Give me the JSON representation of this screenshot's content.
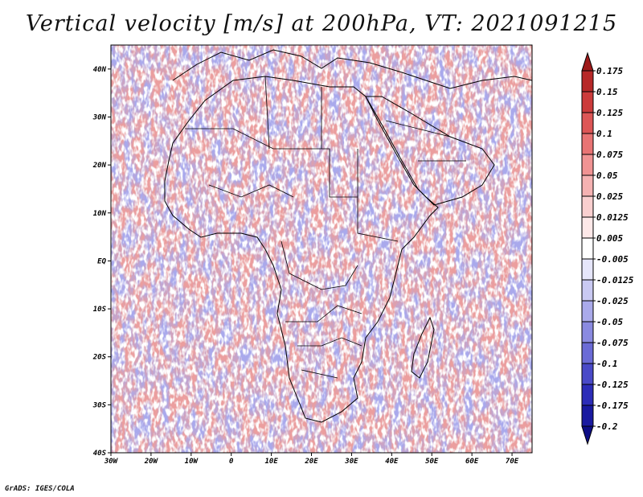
{
  "title": "Vertical velocity [m/s] at 200hPa, VT: 2021091215",
  "footer": "GrADS: IGES/COLA",
  "map": {
    "lat_labels": [
      "40N",
      "30N",
      "20N",
      "10N",
      "EQ",
      "10S",
      "20S",
      "30S",
      "40S"
    ],
    "lon_labels": [
      "30W",
      "20W",
      "10W",
      "0",
      "10E",
      "20E",
      "30E",
      "40E",
      "50E",
      "60E",
      "70E"
    ],
    "lat_range": [
      -40,
      45
    ],
    "lon_range": [
      -30,
      75
    ]
  },
  "colorbar": {
    "labels": [
      "0.175",
      "0.15",
      "0.125",
      "0.1",
      "0.075",
      "0.05",
      "0.025",
      "0.0125",
      "0.005",
      "-0.005",
      "-0.0125",
      "-0.025",
      "-0.05",
      "-0.075",
      "-0.1",
      "-0.125",
      "-0.175",
      "-0.2"
    ],
    "colors": [
      "#9e1a1a",
      "#b72828",
      "#cc3b3b",
      "#dd5656",
      "#e87474",
      "#f09393",
      "#f5b2b2",
      "#f9cfcf",
      "#fde8e8",
      "#ffffff",
      "#e6e6fa",
      "#c9c9f2",
      "#aaaaea",
      "#8a8ae0",
      "#6b6bd6",
      "#4a4ac8",
      "#2d2db8",
      "#1a1aa0",
      "#0d0d85"
    ]
  }
}
